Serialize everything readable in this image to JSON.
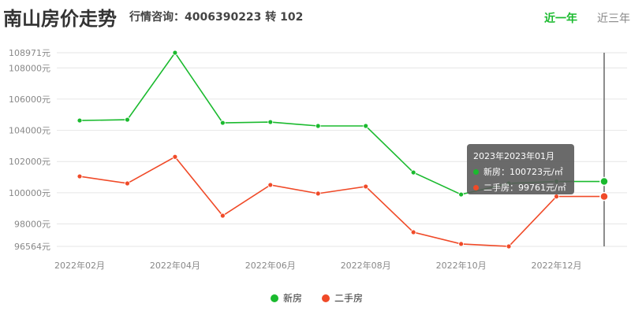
{
  "header": {
    "title": "南山房价走势",
    "hotline": "行情咨询：4006390223 转 102"
  },
  "tabs": [
    {
      "label": "近一年",
      "active": true
    },
    {
      "label": "近三年",
      "active": false
    }
  ],
  "tooltip": {
    "title": "2023年2023年01月",
    "rows": [
      {
        "label": "新房：100723元/㎡"
      },
      {
        "label": "二手房：99761元/㎡"
      }
    ]
  },
  "chart_data": {
    "type": "line",
    "categories": [
      "2022年02月",
      "2022年03月",
      "2022年04月",
      "2022年05月",
      "2022年06月",
      "2022年07月",
      "2022年08月",
      "2022年09月",
      "2022年10月",
      "2022年11月",
      "2022年12月",
      "2023年01月"
    ],
    "x_tick_labels": [
      "2022年02月",
      "2022年04月",
      "2022年06月",
      "2022年08月",
      "2022年10月",
      "2022年12月"
    ],
    "y_ticks": [
      "108971元",
      "108000元",
      "106000元",
      "104000元",
      "102000元",
      "100000元",
      "98000元",
      "96564元"
    ],
    "ylim": [
      96564,
      108971
    ],
    "grid": true,
    "legend_position": "bottom",
    "series": [
      {
        "name": "新房",
        "color": "#1aba2e",
        "values": [
          104630,
          104680,
          108971,
          104480,
          104530,
          104280,
          104280,
          101300,
          99890,
          100600,
          100723,
          100723
        ]
      },
      {
        "name": "二手房",
        "color": "#f04a28",
        "values": [
          101050,
          100600,
          102300,
          98530,
          100500,
          99950,
          100400,
          97470,
          96720,
          96564,
          99761,
          99761
        ]
      }
    ]
  }
}
